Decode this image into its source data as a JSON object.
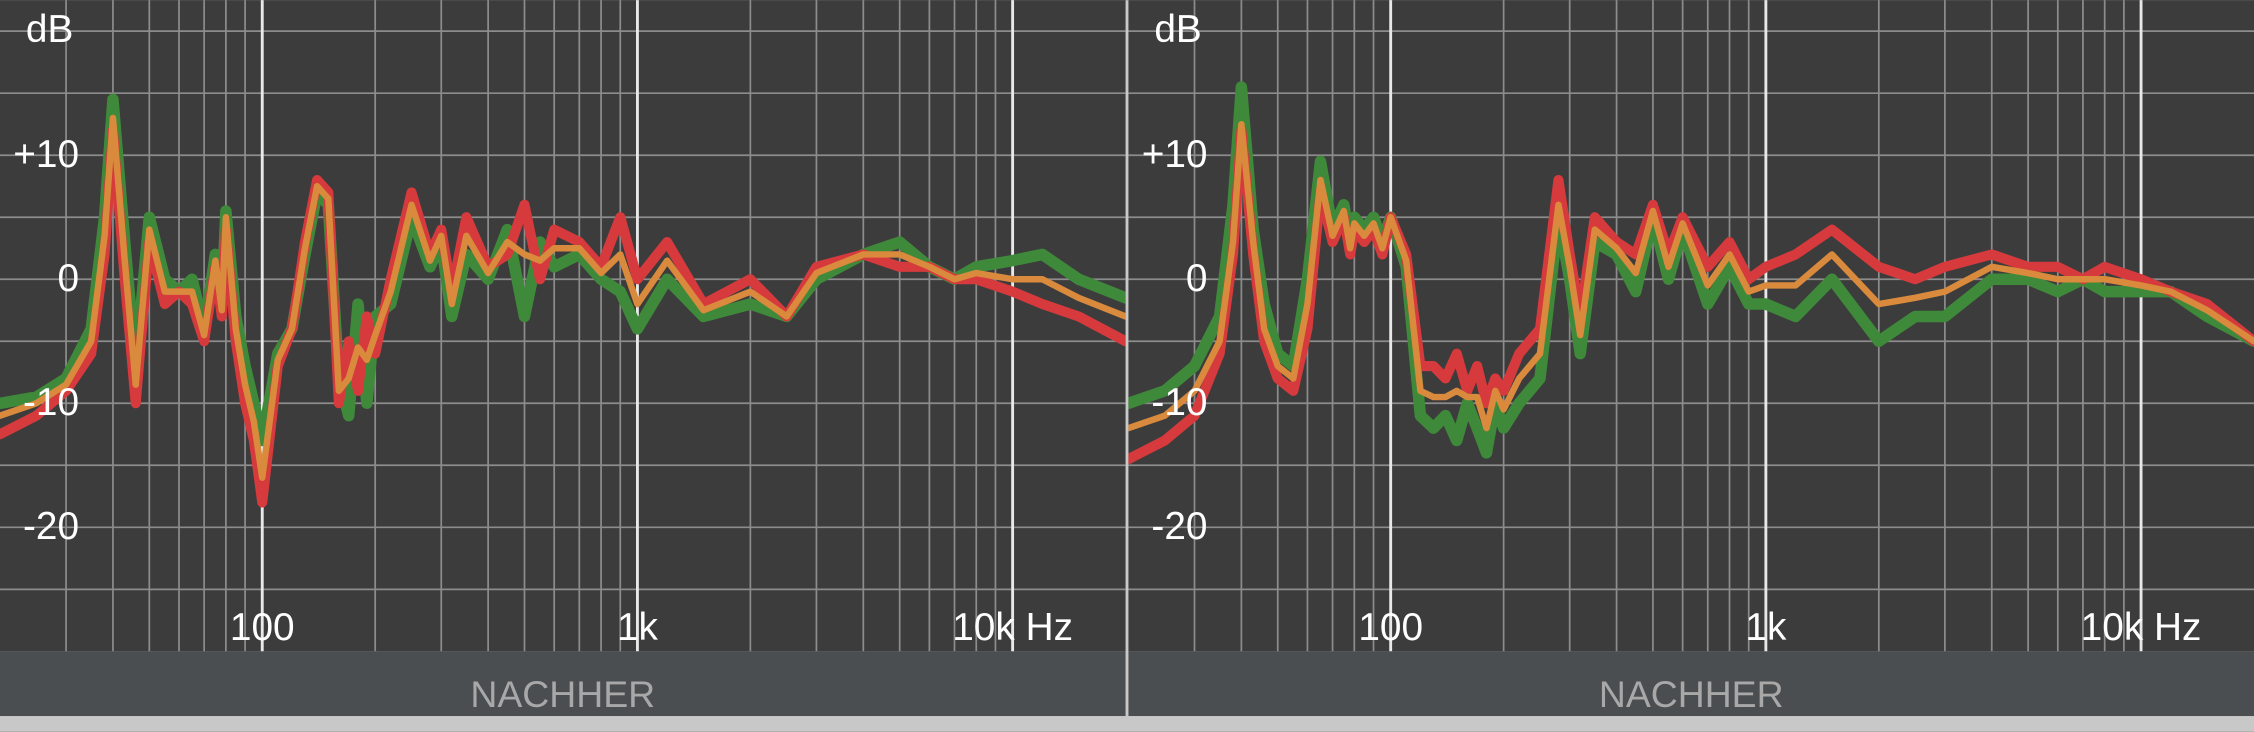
{
  "chart_data": [
    {
      "type": "line",
      "y_label": "dB",
      "footer": "NACHHER",
      "log_x": true,
      "grid": true,
      "xlim": [
        20,
        20000
      ],
      "ylim": [
        -30,
        22.5
      ],
      "xticks": [
        100,
        {
          "value": 1000,
          "label": "1k"
        },
        {
          "value": 10000,
          "label": "10k Hz"
        }
      ],
      "x_grid": [
        30,
        40,
        50,
        60,
        70,
        80,
        90,
        200,
        300,
        400,
        500,
        600,
        700,
        800,
        900,
        2000,
        3000,
        4000,
        5000,
        6000,
        7000,
        8000,
        9000
      ],
      "yticks": [
        {
          "value": 10,
          "label": "+10"
        },
        0,
        -10,
        -20
      ],
      "y_grid": [
        -25,
        -15,
        -5,
        5,
        15,
        20
      ],
      "x": [
        20,
        25,
        30,
        35,
        38,
        40,
        43,
        46,
        50,
        55,
        60,
        65,
        70,
        75,
        78,
        80,
        85,
        90,
        95,
        100,
        110,
        120,
        130,
        140,
        150,
        160,
        170,
        180,
        190,
        200,
        220,
        250,
        280,
        300,
        320,
        350,
        400,
        450,
        500,
        550,
        600,
        700,
        800,
        900,
        1000,
        1200,
        1500,
        2000,
        2500,
        3000,
        4000,
        5000,
        6000,
        7000,
        8000,
        10000,
        12000,
        15000,
        20000
      ],
      "series": [
        {
          "color": "#3f8a3a",
          "width": 8,
          "values": [
            -10,
            -9.5,
            -8,
            -4,
            5,
            14.5,
            3,
            -7,
            5,
            0,
            -1,
            0,
            -4,
            2,
            -2,
            5.5,
            -3,
            -7,
            -10,
            -13,
            -6,
            -4,
            2,
            7,
            6,
            -8,
            -11,
            -2,
            -10,
            -3,
            -2,
            5,
            1,
            3,
            -3,
            2,
            0,
            4,
            -3,
            3,
            1,
            2,
            0,
            -1,
            -4,
            0,
            -3,
            -2,
            -3,
            0,
            2,
            3,
            1,
            0,
            1,
            1.5,
            2,
            0,
            -1.5
          ]
        },
        {
          "color": "#d63a3c",
          "width": 7,
          "values": [
            -12.5,
            -11,
            -9,
            -6,
            2,
            12,
            0,
            -10,
            3,
            -2,
            -1,
            -2,
            -5,
            1,
            -3,
            4,
            -5,
            -10,
            -13,
            -18,
            -7,
            -4,
            3,
            8,
            7,
            -10,
            -5,
            -9,
            -3,
            -6,
            0,
            7,
            2,
            4,
            -1,
            5,
            1,
            2,
            6,
            0,
            4,
            3,
            1,
            5,
            0,
            3,
            -2,
            0,
            -3,
            1,
            2,
            1,
            1,
            0,
            0,
            -1,
            -2,
            -3,
            -5
          ]
        },
        {
          "color": "#d98a3c",
          "width": 4.5,
          "values": [
            -11,
            -10,
            -8.5,
            -5,
            3.5,
            13,
            1.5,
            -8.5,
            4,
            -1,
            -1,
            -1,
            -4.5,
            1.5,
            -2.5,
            5,
            -4,
            -8.5,
            -11.5,
            -16,
            -6.5,
            -4,
            2.5,
            7.5,
            6.5,
            -9,
            -8,
            -5.5,
            -6.5,
            -4.5,
            -1,
            6,
            1.5,
            3.5,
            -2,
            3.5,
            0.5,
            3,
            2,
            1.5,
            2.5,
            2.5,
            0.5,
            2,
            -2,
            1.5,
            -2.5,
            -1,
            -3,
            0.5,
            2,
            2,
            1,
            0,
            0.5,
            0,
            0,
            -1.5,
            -3
          ]
        }
      ]
    },
    {
      "type": "line",
      "y_label": "dB",
      "footer": "NACHHER",
      "log_x": true,
      "grid": true,
      "xlim": [
        20,
        20000
      ],
      "ylim": [
        -30,
        22.5
      ],
      "xticks": [
        100,
        {
          "value": 1000,
          "label": "1k"
        },
        {
          "value": 10000,
          "label": "10k Hz"
        }
      ],
      "x_grid": [
        30,
        40,
        50,
        60,
        70,
        80,
        90,
        200,
        300,
        400,
        500,
        600,
        700,
        800,
        900,
        2000,
        3000,
        4000,
        5000,
        6000,
        7000,
        8000,
        9000
      ],
      "yticks": [
        {
          "value": 10,
          "label": "+10"
        },
        0,
        -10,
        -20
      ],
      "y_grid": [
        -25,
        -15,
        -5,
        5,
        15,
        20
      ],
      "x": [
        20,
        25,
        30,
        35,
        38,
        40,
        43,
        46,
        50,
        55,
        60,
        65,
        70,
        75,
        78,
        80,
        85,
        90,
        95,
        100,
        110,
        120,
        130,
        140,
        150,
        160,
        170,
        180,
        190,
        200,
        220,
        250,
        280,
        300,
        320,
        350,
        400,
        450,
        500,
        550,
        600,
        700,
        800,
        900,
        1000,
        1200,
        1500,
        2000,
        2500,
        3000,
        4000,
        5000,
        6000,
        7000,
        8000,
        10000,
        12000,
        15000,
        20000
      ],
      "series": [
        {
          "color": "#3f8a3a",
          "width": 8,
          "values": [
            -10,
            -9,
            -7,
            -3,
            6,
            15.5,
            4,
            -2,
            -6,
            -7,
            0,
            9.5,
            4,
            6,
            3,
            5,
            4,
            5,
            3,
            5,
            1,
            -11,
            -12,
            -11,
            -13,
            -10,
            -12,
            -14,
            -10,
            -12,
            -10,
            -8,
            5,
            0,
            -6,
            3,
            2,
            -1,
            5,
            0,
            4,
            -2,
            1,
            -2,
            -2,
            -3,
            0,
            -5,
            -3,
            -3,
            0,
            0,
            -1,
            0,
            -1,
            -1,
            -1,
            -3,
            -5
          ]
        },
        {
          "color": "#d63a3c",
          "width": 7,
          "values": [
            -14.5,
            -13,
            -11,
            -6,
            2,
            12,
            2,
            -5,
            -8,
            -9,
            -4,
            7,
            3,
            5,
            2,
            4,
            3,
            4,
            2,
            5,
            2,
            -7,
            -7,
            -8,
            -6,
            -9,
            -7,
            -10,
            -8,
            -9,
            -6,
            -4,
            8,
            2,
            -3,
            5,
            3,
            2,
            6,
            2,
            5,
            1,
            3,
            0,
            1,
            2,
            4,
            1,
            0,
            1,
            2,
            1,
            1,
            0,
            1,
            0,
            -1,
            -2,
            -5
          ]
        },
        {
          "color": "#d98a3c",
          "width": 4.5,
          "values": [
            -12,
            -11,
            -9,
            -5,
            3,
            12.5,
            3,
            -4,
            -7,
            -8,
            -2,
            8,
            3.5,
            5.5,
            2.5,
            4.5,
            3.5,
            4.5,
            2.5,
            5,
            1.5,
            -9,
            -9.5,
            -9.5,
            -9,
            -9.5,
            -9.5,
            -12,
            -9,
            -10.5,
            -8,
            -6,
            6,
            1,
            -4.5,
            4,
            2.5,
            0.5,
            5.5,
            1,
            4.5,
            -0.5,
            2,
            -1,
            -0.5,
            -0.5,
            2,
            -2,
            -1.5,
            -1,
            1,
            0.5,
            0,
            0,
            0,
            -0.5,
            -1,
            -2.5,
            -5
          ]
        }
      ]
    }
  ]
}
